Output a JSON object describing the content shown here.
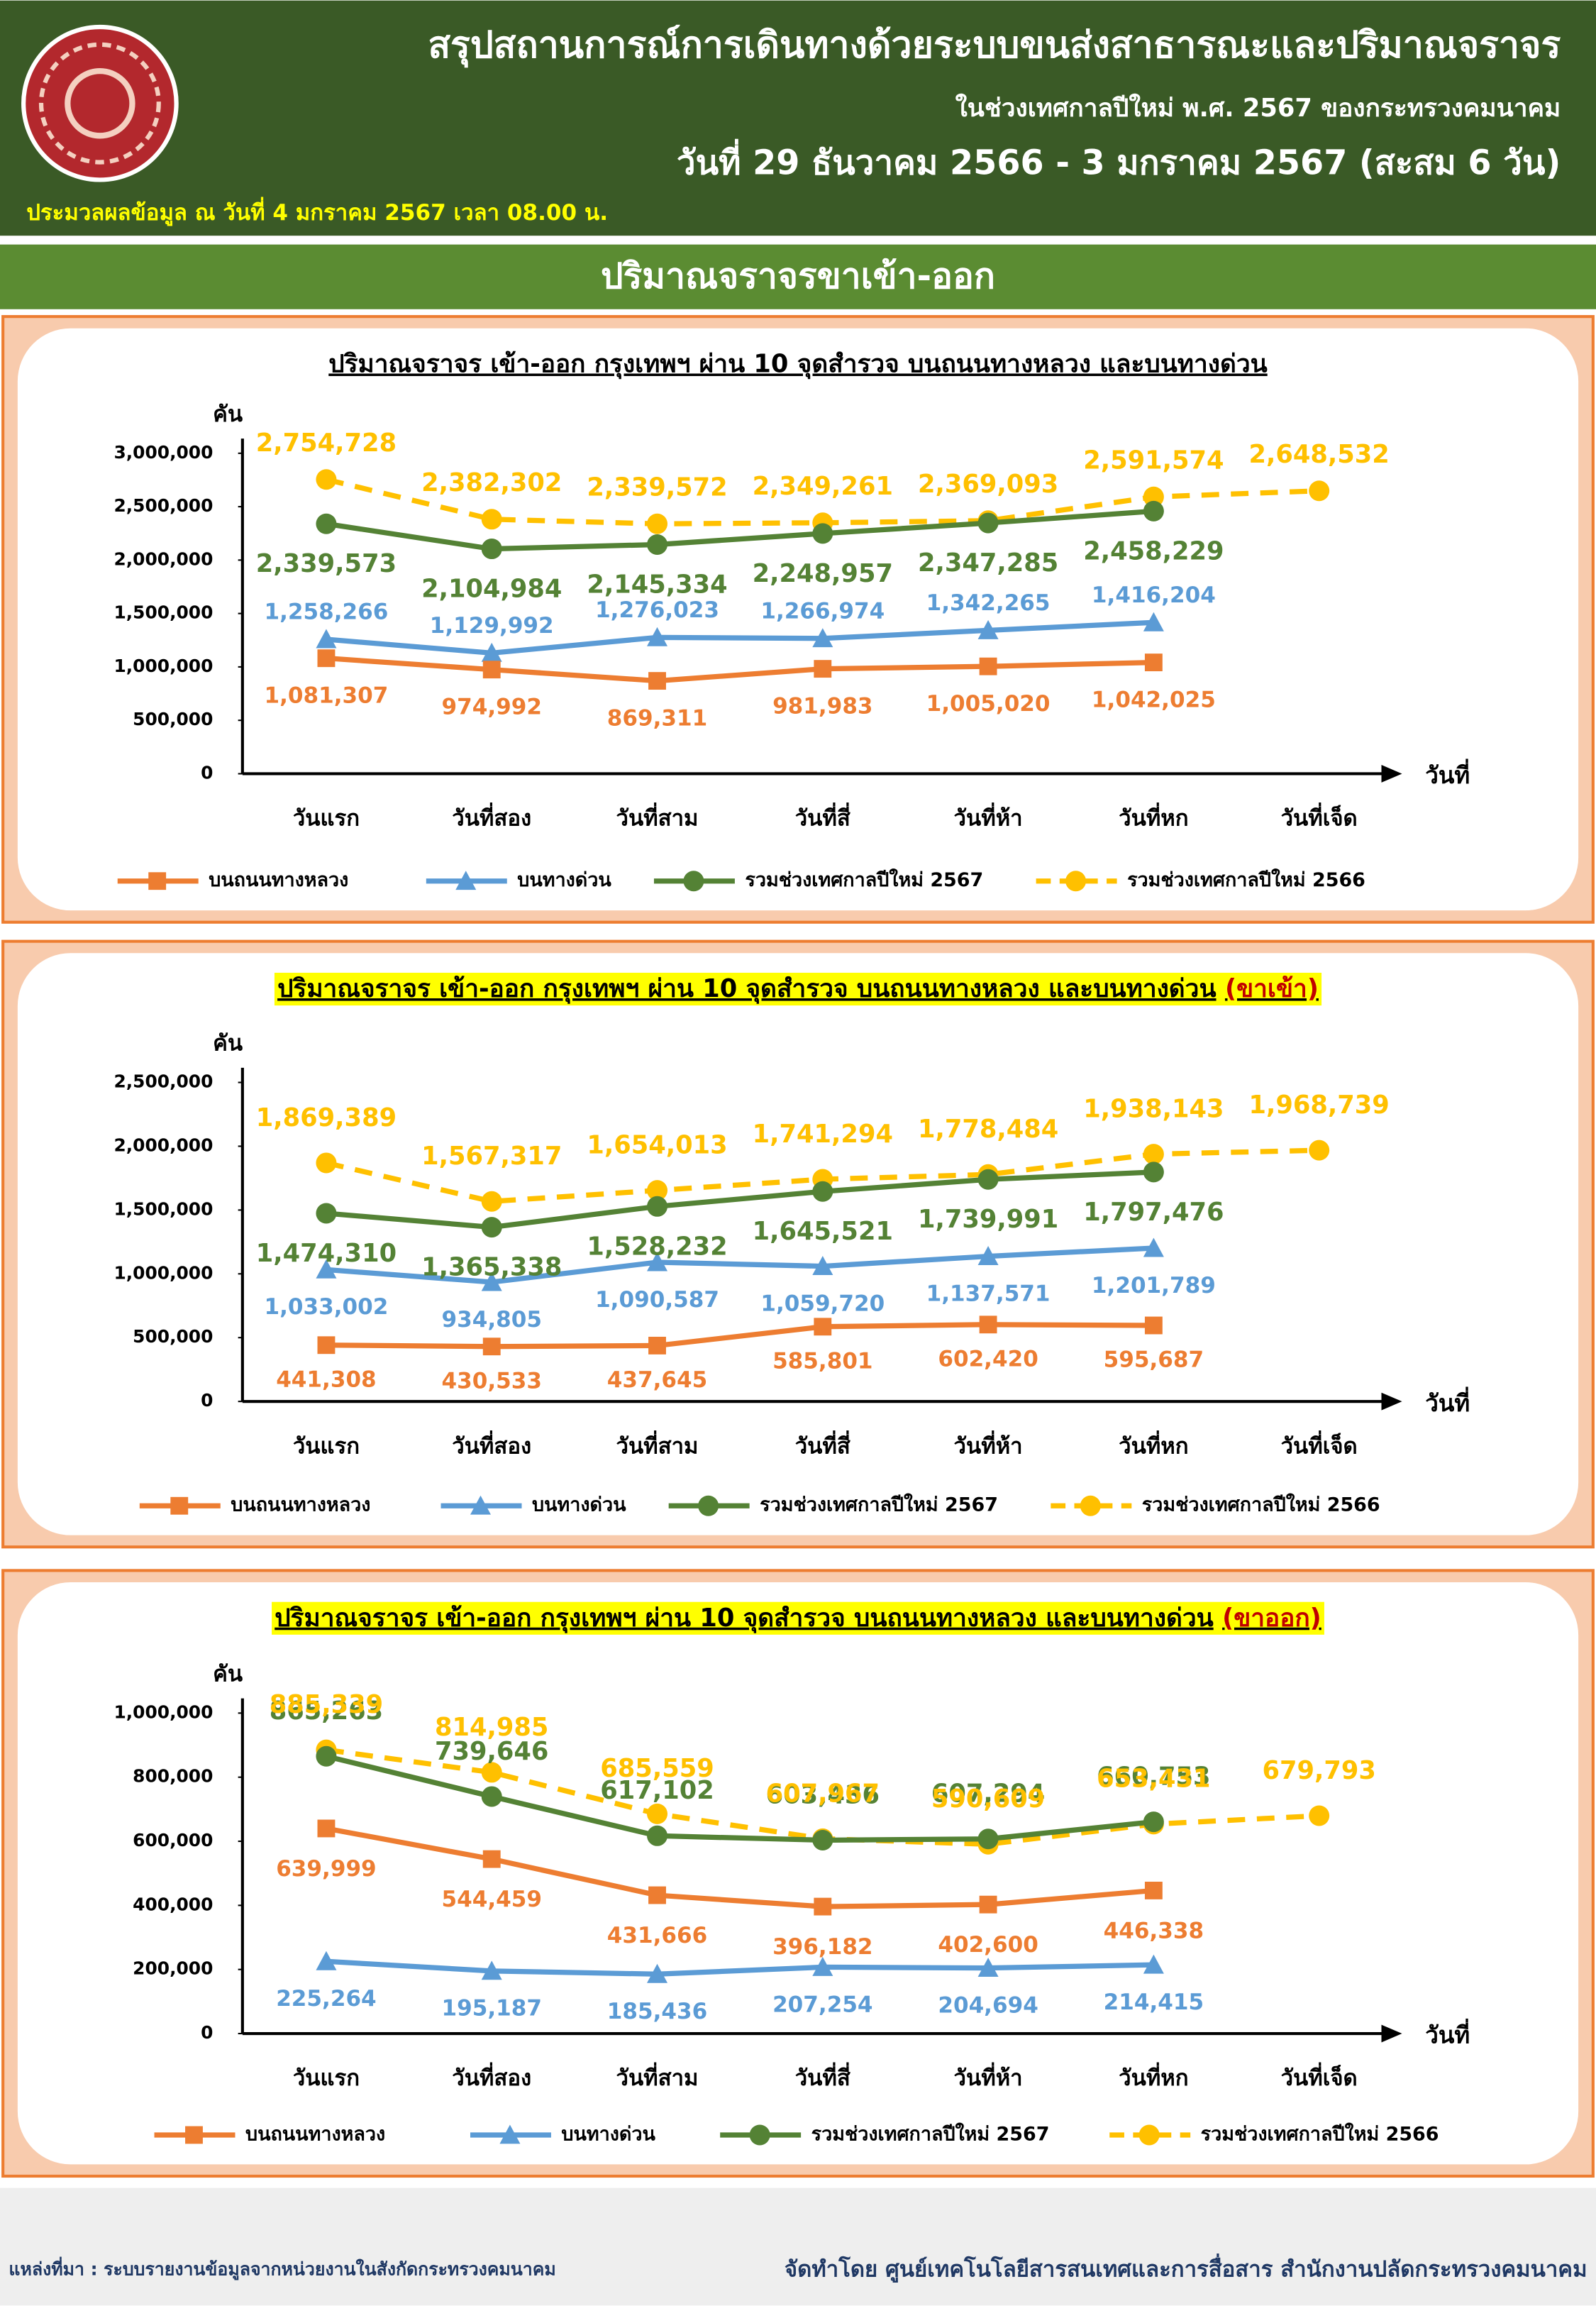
{
  "header": {
    "title": "สรุปสถานการณ์การเดินทางด้วยระบบขนส่งสาธารณะและปริมาณจราจร",
    "subtitle": "ในช่วงเทศกาลปีใหม่ พ.ศ. 2567 ของกระทรวงคมนาคม",
    "date_range": "วันที่ 29 ธันวาคม 2566 - 3 มกราคม 2567 (สะสม 6 วัน)",
    "processed_at": "ประมวลผลข้อมูล ณ วันที่ 4 มกราคม 2567 เวลา 08.00 น."
  },
  "section_title": "ปริมาณจราจรขาเข้า-ออก",
  "chart_data": [
    {
      "type": "line",
      "title": "ปริมาณจราจร เข้า-ออก กรุงเทพฯ ผ่าน 10 จุดสำรวจ บนถนนทางหลวง และบนทางด่วน",
      "y_label": "คัน",
      "x_label": "วันที่",
      "categories": [
        "วันแรก",
        "วันที่สอง",
        "วันที่สาม",
        "วันที่สี่",
        "วันที่ห้า",
        "วันที่หก",
        "วันที่เจ็ด"
      ],
      "ylim": [
        0,
        3000000
      ],
      "yticks": [
        0,
        {
          "value": 500000,
          "label": "500,000"
        },
        {
          "value": 1000000,
          "label": "1,000,000"
        },
        {
          "value": 1500000,
          "label": "1,500,000"
        },
        {
          "value": 2000000,
          "label": "2,000,000"
        },
        {
          "value": 2500000,
          "label": "2,500,000"
        },
        {
          "value": 3000000,
          "label": "3,000,000"
        }
      ],
      "legend": "bottom",
      "series": [
        {
          "name": "บนถนนทางหลวง",
          "color": "#ed7d31",
          "marker": "square",
          "dashed": false,
          "values": [
            1081307,
            974992,
            869311,
            981983,
            1005020,
            1042025,
            null
          ],
          "value_labels": [
            "1,081,307",
            "974,992",
            "869,311",
            "981,983",
            "1,005,020",
            "1,042,025",
            null
          ]
        },
        {
          "name": "บนทางด่วน",
          "color": "#5b9bd5",
          "marker": "triangle",
          "dashed": false,
          "values": [
            1258266,
            1129992,
            1276023,
            1266974,
            1342265,
            1416204,
            null
          ],
          "value_labels": [
            "1,258,266",
            "1,129,992",
            "1,276,023",
            "1,266,974",
            "1,342,265",
            "1,416,204",
            null
          ]
        },
        {
          "name": "รวมช่วงเทศกาลปีใหม่ 2567",
          "color": "#548235",
          "marker": "circle",
          "dashed": false,
          "values": [
            2339573,
            2104984,
            2145334,
            2248957,
            2347285,
            2458229,
            null
          ],
          "value_labels": [
            "2,339,573",
            "2,104,984",
            "2,145,334",
            "2,248,957",
            "2,347,285",
            "2,458,229",
            null
          ]
        },
        {
          "name": "รวมช่วงเทศกาลปีใหม่ 2566",
          "color": "#ffc000",
          "marker": "circle",
          "dashed": true,
          "values": [
            2754728,
            2382302,
            2339572,
            2349261,
            2369093,
            2591574,
            2648532
          ],
          "value_labels": [
            "2,754,728",
            "2,382,302",
            "2,339,572",
            "2,349,261",
            "2,369,093",
            "2,591,574",
            "2,648,532"
          ]
        }
      ]
    },
    {
      "type": "line",
      "title": "ปริมาณจราจร เข้า-ออก กรุงเทพฯ ผ่าน 10 จุดสำรวจ บนถนนทางหลวง และบนทางด่วน",
      "title_note": "(ขาเข้า)",
      "y_label": "คัน",
      "x_label": "วันที่",
      "categories": [
        "วันแรก",
        "วันที่สอง",
        "วันที่สาม",
        "วันที่สี่",
        "วันที่ห้า",
        "วันที่หก",
        "วันที่เจ็ด"
      ],
      "ylim": [
        0,
        2500000
      ],
      "yticks": [
        0,
        {
          "value": 500000,
          "label": "500,000"
        },
        {
          "value": 1000000,
          "label": "1,000,000"
        },
        {
          "value": 1500000,
          "label": "1,500,000"
        },
        {
          "value": 2000000,
          "label": "2,000,000"
        },
        {
          "value": 2500000,
          "label": "2,500,000"
        }
      ],
      "legend": "bottom",
      "series": [
        {
          "name": "บนถนนทางหลวง",
          "color": "#ed7d31",
          "marker": "square",
          "dashed": false,
          "values": [
            441308,
            430533,
            437645,
            585801,
            602420,
            595687,
            null
          ],
          "value_labels": [
            "441,308",
            "430,533",
            "437,645",
            "585,801",
            "602,420",
            "595,687",
            null
          ]
        },
        {
          "name": "บนทางด่วน",
          "color": "#5b9bd5",
          "marker": "triangle",
          "dashed": false,
          "values": [
            1033002,
            934805,
            1090587,
            1059720,
            1137571,
            1201789,
            null
          ],
          "value_labels": [
            "1,033,002",
            "934,805",
            "1,090,587",
            "1,059,720",
            "1,137,571",
            "1,201,789",
            null
          ]
        },
        {
          "name": "รวมช่วงเทศกาลปีใหม่ 2567",
          "color": "#548235",
          "marker": "circle",
          "dashed": false,
          "values": [
            1474310,
            1365338,
            1528232,
            1645521,
            1739991,
            1797476,
            null
          ],
          "value_labels": [
            "1,474,310",
            "1,365,338",
            "1,528,232",
            "1,645,521",
            "1,739,991",
            "1,797,476",
            null
          ]
        },
        {
          "name": "รวมช่วงเทศกาลปีใหม่ 2566",
          "color": "#ffc000",
          "marker": "circle",
          "dashed": true,
          "values": [
            1869389,
            1567317,
            1654013,
            1741294,
            1778484,
            1938143,
            1968739
          ],
          "value_labels": [
            "1,869,389",
            "1,567,317",
            "1,654,013",
            "1,741,294",
            "1,778,484",
            "1,938,143",
            "1,968,739"
          ]
        }
      ]
    },
    {
      "type": "line",
      "title": "ปริมาณจราจร เข้า-ออก กรุงเทพฯ ผ่าน 10 จุดสำรวจ บนถนนทางหลวง และบนทางด่วน",
      "title_note": "(ขาออก)",
      "y_label": "คัน",
      "x_label": "วันที่",
      "categories": [
        "วันแรก",
        "วันที่สอง",
        "วันที่สาม",
        "วันที่สี่",
        "วันที่ห้า",
        "วันที่หก",
        "วันที่เจ็ด"
      ],
      "ylim": [
        0,
        1000000
      ],
      "yticks": [
        0,
        {
          "value": 200000,
          "label": "200,000"
        },
        {
          "value": 400000,
          "label": "400,000"
        },
        {
          "value": 600000,
          "label": "600,000"
        },
        {
          "value": 800000,
          "label": "800,000"
        },
        {
          "value": 1000000,
          "label": "1,000,000"
        }
      ],
      "legend": "bottom",
      "series": [
        {
          "name": "บนถนนทางหลวง",
          "color": "#ed7d31",
          "marker": "square",
          "dashed": false,
          "values": [
            639999,
            544459,
            431666,
            396182,
            402600,
            446338,
            null
          ],
          "value_labels": [
            "639,999",
            "544,459",
            "431,666",
            "396,182",
            "402,600",
            "446,338",
            null
          ]
        },
        {
          "name": "บนทางด่วน",
          "color": "#5b9bd5",
          "marker": "triangle",
          "dashed": false,
          "values": [
            225264,
            195187,
            185436,
            207254,
            204694,
            214415,
            null
          ],
          "value_labels": [
            "225,264",
            "195,187",
            "185,436",
            "207,254",
            "204,694",
            "214,415",
            null
          ]
        },
        {
          "name": "รวมช่วงเทศกาลปีใหม่ 2567",
          "color": "#548235",
          "marker": "circle",
          "dashed": false,
          "values": [
            865263,
            739646,
            617102,
            603436,
            607294,
            660753,
            null
          ],
          "value_labels": [
            "865,263",
            "739,646",
            "617,102",
            "603,436",
            "607,294",
            "660,753",
            null
          ]
        },
        {
          "name": "รวมช่วงเทศกาลปีใหม่ 2566",
          "color": "#ffc000",
          "marker": "circle",
          "dashed": true,
          "values": [
            885339,
            814985,
            685559,
            607967,
            590609,
            653431,
            679793
          ],
          "value_labels": [
            "885,339",
            "814,985",
            "685,559",
            "607,967",
            "590,609",
            "653,431",
            "679,793"
          ]
        }
      ]
    }
  ],
  "footer": {
    "source": "แหล่งที่มา : ระบบรายงานข้อมูลจากหน่วยงานในสังกัดกระทรวงคมนาคม",
    "credit": "จัดทำโดย ศูนย์เทคโนโลยีสารสนเทศและการสื่อสาร สำนักงานปลัดกระทรวงคมนาคม"
  }
}
